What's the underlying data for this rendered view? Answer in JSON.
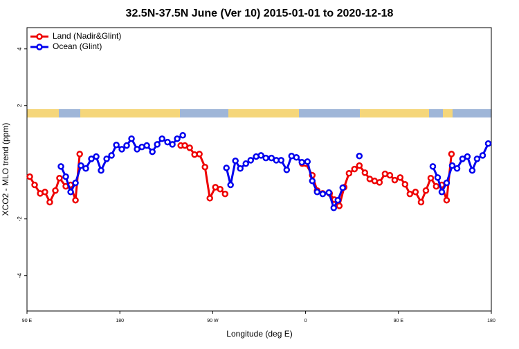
{
  "chart_data": {
    "type": "line",
    "title": "32.5N-37.5N June (Ver 10)   2015-01-01 to 2020-12-18",
    "xlabel": "Longitude (deg E)",
    "ylabel": "XCO2 - MLO trend (ppm)",
    "xlim": [
      90,
      540
    ],
    "ylim": [
      -5.25,
      4.75
    ],
    "xticks": [
      {
        "value": 90,
        "label": "90 E"
      },
      180,
      {
        "value": 270,
        "label": "90 W"
      },
      {
        "value": 360,
        "label": "0"
      },
      {
        "value": 450,
        "label": "90 E"
      },
      {
        "value": 540,
        "label": "180"
      }
    ],
    "yticks": [
      -4,
      -2,
      2,
      4
    ],
    "legend": "top-left",
    "series": [
      {
        "name": "Land (Nadir&Glint)",
        "color": "#ee0000",
        "x": [
          92.7,
          97.4,
          102.8,
          107.4,
          112.1,
          117.5,
          121.5,
          127.6,
          132.3,
          137,
          141.1,
          null,
          239,
          243,
          247.7,
          252.4,
          257.1,
          262.5,
          267.2,
          272.6,
          277.2,
          282,
          null,
          356.8,
          360.2,
          366.5,
          371.2,
          376.6,
          383.3,
          388,
          392.7,
          397.4,
          402.1,
          407.4,
          412.1,
          417.5,
          422.2,
          426.9,
          431.6,
          437,
          441.7,
          446.4,
          451.7,
          456.4,
          461.1,
          466.5,
          471.9,
          476.6,
          481.3,
          486.6,
          492,
          496.7,
          501.4
        ],
        "values": [
          -0.51,
          -0.8,
          -1.1,
          -1.05,
          -1.41,
          -1.0,
          -0.56,
          -0.85,
          -0.8,
          -1.34,
          0.29,
          null,
          0.59,
          0.59,
          0.51,
          0.27,
          0.29,
          -0.17,
          -1.27,
          -0.88,
          -0.95,
          -1.12,
          null,
          -0.05,
          -0.05,
          -0.46,
          -1.0,
          -1.1,
          -1.1,
          -1.32,
          -1.54,
          -0.88,
          -0.39,
          -0.24,
          -0.12,
          -0.37,
          -0.59,
          -0.66,
          -0.71,
          -0.41,
          -0.46,
          -0.63,
          -0.54,
          -0.78,
          -1.12,
          -1.05,
          -1.41,
          -1.0,
          -0.56,
          -0.85,
          -0.8,
          -1.34,
          0.29
        ]
      },
      {
        "name": "Ocean (Glint)",
        "color": "#0000ee",
        "x": [
          122.9,
          127.6,
          132.3,
          137,
          142.3,
          147,
          152.4,
          157.1,
          161.8,
          167.2,
          171.9,
          176.6,
          181.9,
          186.6,
          191.3,
          196.7,
          201.4,
          206.1,
          211.5,
          216.2,
          220.9,
          226.2,
          230.9,
          235.6,
          241,
          null,
          283.3,
          287.3,
          292,
          296.7,
          302.1,
          306.8,
          312.1,
          316.8,
          321.5,
          326.9,
          331.6,
          336.3,
          341.7,
          346.4,
          351.1,
          356.4,
          361.8,
          366.5,
          371.2,
          376.6,
          382.6,
          387.3,
          391.3,
          396,
          null,
          412.1,
          null,
          483.3,
          488,
          492,
          496.7,
          502.1,
          506.8,
          512.1,
          516.8,
          521.5,
          526.2,
          531.6,
          537
        ],
        "values": [
          -0.15,
          -0.51,
          -1.05,
          -0.73,
          -0.12,
          -0.22,
          0.12,
          0.2,
          -0.29,
          0.12,
          0.24,
          0.61,
          0.46,
          0.59,
          0.83,
          0.46,
          0.54,
          0.59,
          0.37,
          0.63,
          0.83,
          0.71,
          0.63,
          0.83,
          0.95,
          null,
          -0.2,
          -0.8,
          0.05,
          -0.22,
          -0.05,
          0.07,
          0.2,
          0.24,
          0.15,
          0.15,
          0.07,
          0.07,
          -0.27,
          0.22,
          0.17,
          0.0,
          0.02,
          -0.66,
          -1.05,
          -1.12,
          -1.07,
          -1.61,
          -1.34,
          -0.9,
          null,
          0.22,
          null,
          -0.15,
          -0.54,
          -1.05,
          -0.73,
          -0.12,
          -0.22,
          0.12,
          0.2,
          -0.29,
          0.12,
          0.24,
          0.66
        ]
      }
    ]
  }
}
